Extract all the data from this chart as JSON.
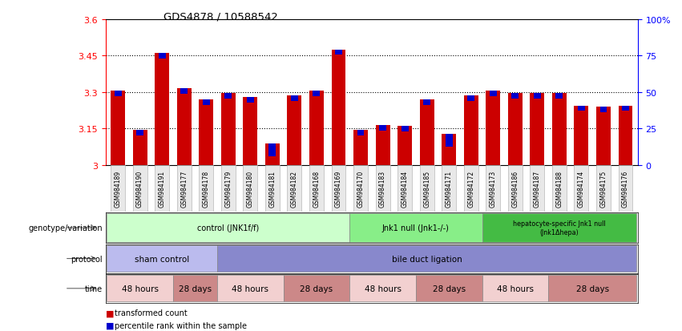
{
  "title": "GDS4878 / 10588542",
  "samples": [
    "GSM984189",
    "GSM984190",
    "GSM984191",
    "GSM984177",
    "GSM984178",
    "GSM984179",
    "GSM984180",
    "GSM984181",
    "GSM984182",
    "GSM984168",
    "GSM984169",
    "GSM984170",
    "GSM984183",
    "GSM984184",
    "GSM984185",
    "GSM984171",
    "GSM984172",
    "GSM984173",
    "GSM984186",
    "GSM984187",
    "GSM984188",
    "GSM984174",
    "GSM984175",
    "GSM984176"
  ],
  "bar_heights": [
    3.305,
    3.145,
    3.46,
    3.315,
    3.27,
    3.295,
    3.28,
    3.09,
    3.285,
    3.305,
    3.475,
    3.145,
    3.165,
    3.16,
    3.27,
    3.13,
    3.285,
    3.305,
    3.295,
    3.295,
    3.295,
    3.245,
    3.24,
    3.245
  ],
  "blue_heights": [
    0.022,
    0.022,
    0.022,
    0.022,
    0.022,
    0.022,
    0.022,
    0.055,
    0.022,
    0.022,
    0.022,
    0.022,
    0.022,
    0.022,
    0.022,
    0.055,
    0.022,
    0.022,
    0.022,
    0.022,
    0.022,
    0.022,
    0.022,
    0.022
  ],
  "bar_color": "#cc0000",
  "blue_color": "#0000cc",
  "ymin": 3.0,
  "ymax": 3.6,
  "yticks_left": [
    3.0,
    3.15,
    3.3,
    3.45,
    3.6
  ],
  "ytick_labels_left": [
    "3",
    "3.15",
    "3.3",
    "3.45",
    "3.6"
  ],
  "ytick_labels_right": [
    "0",
    "25",
    "50",
    "75",
    "100%"
  ],
  "hlines": [
    3.15,
    3.3,
    3.45
  ],
  "genotype_groups": [
    {
      "label": "control (JNK1f/f)",
      "start": 0,
      "end": 11,
      "color": "#ccffcc"
    },
    {
      "label": "Jnk1 null (Jnk1-/-)",
      "start": 11,
      "end": 17,
      "color": "#88ee88"
    },
    {
      "label": "hepatocyte-specific Jnk1 null\n(Jnk1Δhepa)",
      "start": 17,
      "end": 24,
      "color": "#44bb44"
    }
  ],
  "protocol_groups": [
    {
      "label": "sham control",
      "start": 0,
      "end": 5,
      "color": "#bbbbee"
    },
    {
      "label": "bile duct ligation",
      "start": 5,
      "end": 24,
      "color": "#8888cc"
    }
  ],
  "time_groups": [
    {
      "label": "48 hours",
      "start": 0,
      "end": 3,
      "color": "#f2d0d0"
    },
    {
      "label": "28 days",
      "start": 3,
      "end": 5,
      "color": "#cc8888"
    },
    {
      "label": "48 hours",
      "start": 5,
      "end": 8,
      "color": "#f2d0d0"
    },
    {
      "label": "28 days",
      "start": 8,
      "end": 11,
      "color": "#cc8888"
    },
    {
      "label": "48 hours",
      "start": 11,
      "end": 14,
      "color": "#f2d0d0"
    },
    {
      "label": "28 days",
      "start": 14,
      "end": 17,
      "color": "#cc8888"
    },
    {
      "label": "48 hours",
      "start": 17,
      "end": 20,
      "color": "#f2d0d0"
    },
    {
      "label": "28 days",
      "start": 20,
      "end": 24,
      "color": "#cc8888"
    }
  ],
  "legend_items": [
    {
      "label": "transformed count",
      "color": "#cc0000"
    },
    {
      "label": "percentile rank within the sample",
      "color": "#0000cc"
    }
  ],
  "row_labels": [
    "genotype/variation",
    "protocol",
    "time"
  ]
}
